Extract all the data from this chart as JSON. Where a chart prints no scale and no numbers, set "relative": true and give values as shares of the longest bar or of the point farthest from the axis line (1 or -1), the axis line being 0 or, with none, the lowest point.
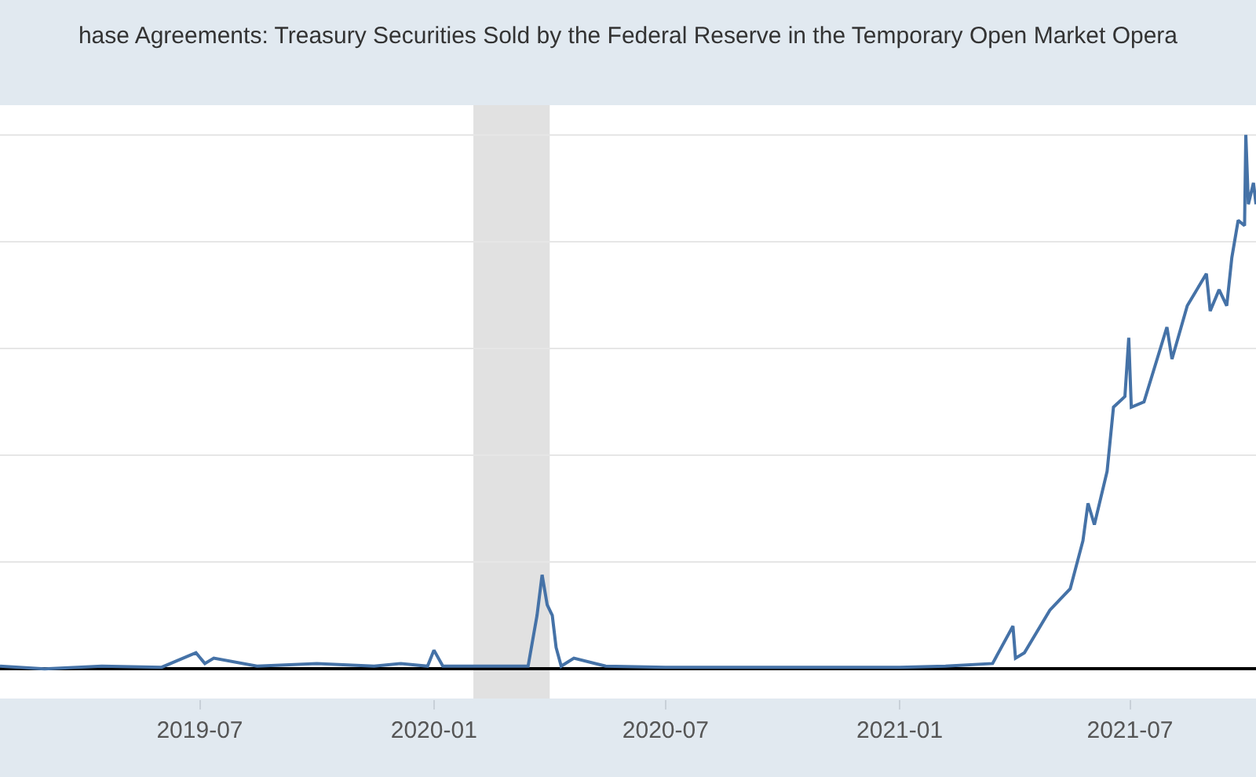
{
  "chart_data": {
    "type": "line",
    "title": "hase Agreements: Treasury Securities Sold by the Federal Reserve in the Temporary Open Market Opera",
    "relative": true,
    "grid": "y",
    "marker": "none",
    "line_style": "solid",
    "xlim": [
      "2019-01-25",
      "2021-10-08"
    ],
    "xticks": [
      "2019-07",
      "2020-01",
      "2020-07",
      "2021-01",
      "2021-07"
    ],
    "bands": [
      {
        "axis": "x",
        "from": "2020-02-01",
        "to": "2020-04-01",
        "color": "#e1e1e1"
      }
    ],
    "x": [
      "2019-01-25",
      "2019-03-01",
      "2019-04-15",
      "2019-06-01",
      "2019-06-28",
      "2019-07-05",
      "2019-07-12",
      "2019-08-15",
      "2019-10-01",
      "2019-11-15",
      "2019-12-06",
      "2019-12-27",
      "2020-01-01",
      "2020-01-08",
      "2020-02-15",
      "2020-03-15",
      "2020-03-22",
      "2020-03-26",
      "2020-03-30",
      "2020-04-03",
      "2020-04-06",
      "2020-04-10",
      "2020-04-20",
      "2020-05-15",
      "2020-07-01",
      "2020-10-01",
      "2021-01-01",
      "2021-02-06",
      "2021-03-15",
      "2021-03-31",
      "2021-04-02",
      "2021-04-09",
      "2021-04-29",
      "2021-05-15",
      "2021-05-25",
      "2021-05-29",
      "2021-06-03",
      "2021-06-13",
      "2021-06-18",
      "2021-06-27",
      "2021-06-30",
      "2021-07-02",
      "2021-07-12",
      "2021-07-30",
      "2021-08-03",
      "2021-08-15",
      "2021-08-30",
      "2021-09-02",
      "2021-09-09",
      "2021-09-15",
      "2021-09-19",
      "2021-09-24",
      "2021-09-29",
      "2021-09-30",
      "2021-10-02",
      "2021-10-06",
      "2021-10-08"
    ],
    "series": [
      {
        "color": "#4572a7",
        "values": [
          0.005,
          0.0,
          0.005,
          0.003,
          0.03,
          0.01,
          0.02,
          0.005,
          0.01,
          0.005,
          0.01,
          0.005,
          0.035,
          0.005,
          0.005,
          0.005,
          0.1,
          0.176,
          0.12,
          0.1,
          0.04,
          0.005,
          0.02,
          0.005,
          0.003,
          0.003,
          0.003,
          0.005,
          0.01,
          0.08,
          0.02,
          0.03,
          0.11,
          0.15,
          0.24,
          0.31,
          0.27,
          0.37,
          0.49,
          0.51,
          0.62,
          0.49,
          0.5,
          0.64,
          0.58,
          0.68,
          0.74,
          0.67,
          0.71,
          0.68,
          0.77,
          0.84,
          0.83,
          1.0,
          0.87,
          0.91,
          0.87
        ]
      }
    ]
  }
}
